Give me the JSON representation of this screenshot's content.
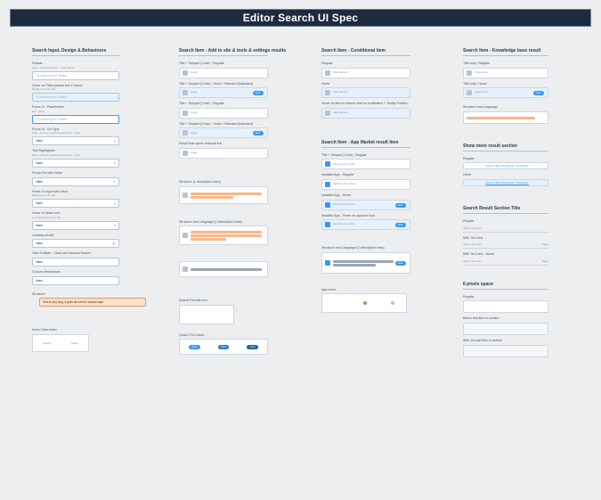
{
  "header": {
    "title": "Editor Search UI Spec"
  },
  "col1": {
    "title": "Search Input, Design & Behaviours",
    "blocks": [
      {
        "label": "Default",
        "sub": "Enter - Focus input   Esc - Close search",
        "value": "Try searching for \"Button\"",
        "state": "default"
      },
      {
        "label": "Hover on Field (similar but in focus)",
        "sub": "Background color #E…",
        "value": "Try searching for \"Button\"",
        "state": "hover"
      },
      {
        "label": "Focus In - Placeholder",
        "sub": "Esc - Clear",
        "value": "Try searching for \"Button\"",
        "state": "focus"
      },
      {
        "label": "Focus In - On Type",
        "sub": "Enter - Perform selected search   Esc - Clear",
        "value": "Value",
        "state": "filled",
        "glyph": "×"
      },
      {
        "label": "Text Highlighted",
        "sub": "Enter - Perform selected search   Esc - Clear",
        "value": "Value",
        "state": "filled",
        "glyph": "×"
      },
      {
        "label": "Focus Out with Value",
        "sub": "",
        "value": "Value",
        "state": "filled",
        "glyph": "×"
      },
      {
        "label": "Hover on input with value",
        "sub": "Background color #E…",
        "value": "Value",
        "state": "filled",
        "glyph": "×"
      },
      {
        "label": "Hover on clear icon",
        "sub": "Icon background color #E…",
        "value": "Value",
        "state": "filled",
        "glyph": "×"
      },
      {
        "label": "Loading results",
        "sub": "",
        "value": "Value",
        "state": "filled",
        "glyph": "↻"
      },
      {
        "label": "Click Outside - Close and dismiss Search",
        "sub": "",
        "value": "Value",
        "state": "filled",
        "glyph": ""
      },
      {
        "label": "Cursors Behaviours",
        "sub": "",
        "value": "Value",
        "state": "filled",
        "glyph": ""
      }
    ],
    "structure_label": "Structure",
    "structure_value": "Text is very long, it goes far into the search input",
    "icons_title": "Icons Color Index",
    "icon_labels": [
      "Default",
      "Active"
    ]
  },
  "col2": {
    "title": "Search Item - Add to site & tools & settings results",
    "rows": [
      {
        "label": "Title + Snippet (1 line) - Regular",
        "name": "Image",
        "state": "default",
        "pill": ""
      },
      {
        "label": "Title + Snippet (2 line) - Hover / Selected (keyboard)",
        "name": "Image",
        "state": "hover",
        "pill": "Open"
      },
      {
        "label": "Title + Snippet (1 line) - Regular",
        "name": "Image",
        "state": "default",
        "pill": ""
      },
      {
        "label": "Title + Snippet (2 line) - Hover / Selected (keyboard)",
        "name": "Image",
        "state": "hover",
        "pill": "Open"
      },
      {
        "label": "Result that opens external link",
        "name": "Image",
        "state": "default",
        "pill": ""
      }
    ],
    "structure1": "Structure (1 description lines)",
    "structure2": "Structure and Language (2 description lines)",
    "icon_title": "Search Results Icon",
    "cta_title": "Quick CTA Colors"
  },
  "col3": {
    "title": "Search Item - Conditional item",
    "rows": [
      {
        "label": "Regular",
        "name": "Slider Element",
        "state": "default",
        "pill": ""
      },
      {
        "label": "Hover",
        "name": "Slider Element",
        "state": "hover",
        "pill": ""
      },
      {
        "label": "Hover on item to search item on notification + Tooltip Position",
        "name": "Slider Element",
        "state": "hover",
        "pill": ""
      }
    ],
    "market_title": "Search Item - App Market result item",
    "market_rows": [
      {
        "label": "Title + Snippet (1 line) - Regular",
        "name": "Facebook Live Pause",
        "state": "default",
        "pill": ""
      },
      {
        "label": "Installed App - Regular",
        "name": "Facebook Live Pause",
        "state": "default",
        "pill": ""
      },
      {
        "label": "Installed App - Hover",
        "name": "Facebook Live Pause",
        "state": "hover",
        "pill": "Open"
      },
      {
        "label": "Installed App - Hover on approve icon",
        "name": "Facebook Live Pause",
        "state": "hover",
        "pill": "Open"
      }
    ],
    "structure": "Structure and Language (2 description lines)",
    "app_icons": "App Icons"
  },
  "col4": {
    "title": "Search Item - Knowledge base result",
    "rows": [
      {
        "label": "Title only / Regular",
        "name": "Image article",
        "state": "default",
        "pill": ""
      },
      {
        "label": "Title only / Hover",
        "name": "Image article",
        "state": "hover",
        "pill": "Open"
      }
    ],
    "structure": "Structure and Language",
    "more_title": "Show more result section",
    "more_regular": "Regular",
    "more_hover": "Hover",
    "more_link": "Show 12 More Results for \"Translation\"",
    "section_title": "Search Result Section Title",
    "section_rows": [
      {
        "label": "Regular",
        "text": "App for your site",
        "link": ""
      },
      {
        "label": "With Text Link",
        "text": "App for your site",
        "link": "Open"
      },
      {
        "label": "With Text Link - Hover",
        "text": "App for your site",
        "link": "Open"
      }
    ],
    "space_title": "6 pixels space",
    "space_rows": [
      {
        "label": "Regular"
      },
      {
        "label": "Below first item in section"
      },
      {
        "label": "After the last item in section"
      }
    ]
  },
  "colors": {
    "accent": "#3899ec",
    "banner": "#1d2b3f",
    "tag": "#a94fdb",
    "highlight": "#f5b78a"
  }
}
